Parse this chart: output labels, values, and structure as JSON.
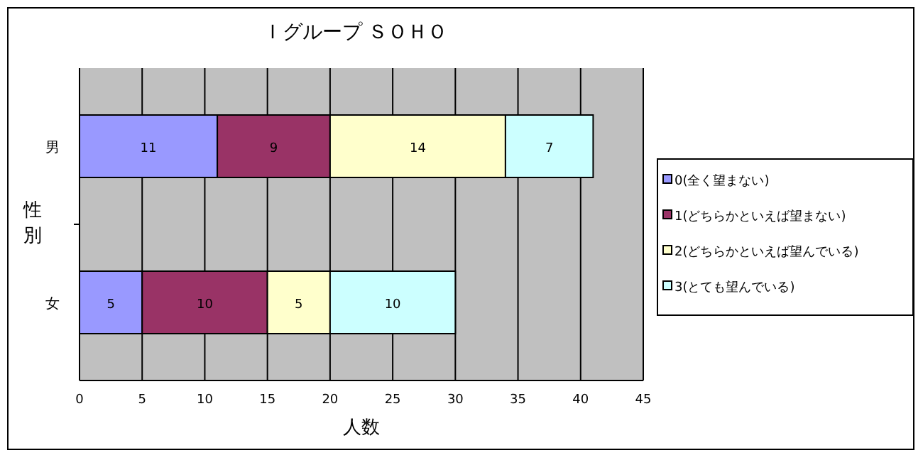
{
  "chart_data": {
    "type": "bar",
    "orientation": "horizontal",
    "stacked": true,
    "title": "Ｉグループ ＳＯＨＯ",
    "xlabel": "人数",
    "ylabel": "性別",
    "categories": [
      "男",
      "女"
    ],
    "series": [
      {
        "name": "0(全く望まない)",
        "color": "#9999ff",
        "values": [
          11,
          5
        ]
      },
      {
        "name": "1(どちらかといえば望まない)",
        "color": "#993366",
        "values": [
          9,
          10
        ]
      },
      {
        "name": "2(どちらかといえば望んでいる)",
        "color": "#ffffcc",
        "values": [
          14,
          5
        ]
      },
      {
        "name": "3(とても望んでいる)",
        "color": "#ccffff",
        "values": [
          7,
          10
        ]
      }
    ],
    "xlim": [
      0,
      45
    ],
    "xticks": [
      0,
      5,
      10,
      15,
      20,
      25,
      30,
      35,
      40,
      45
    ],
    "grid": "x",
    "legend": "right",
    "data_labels": true
  }
}
